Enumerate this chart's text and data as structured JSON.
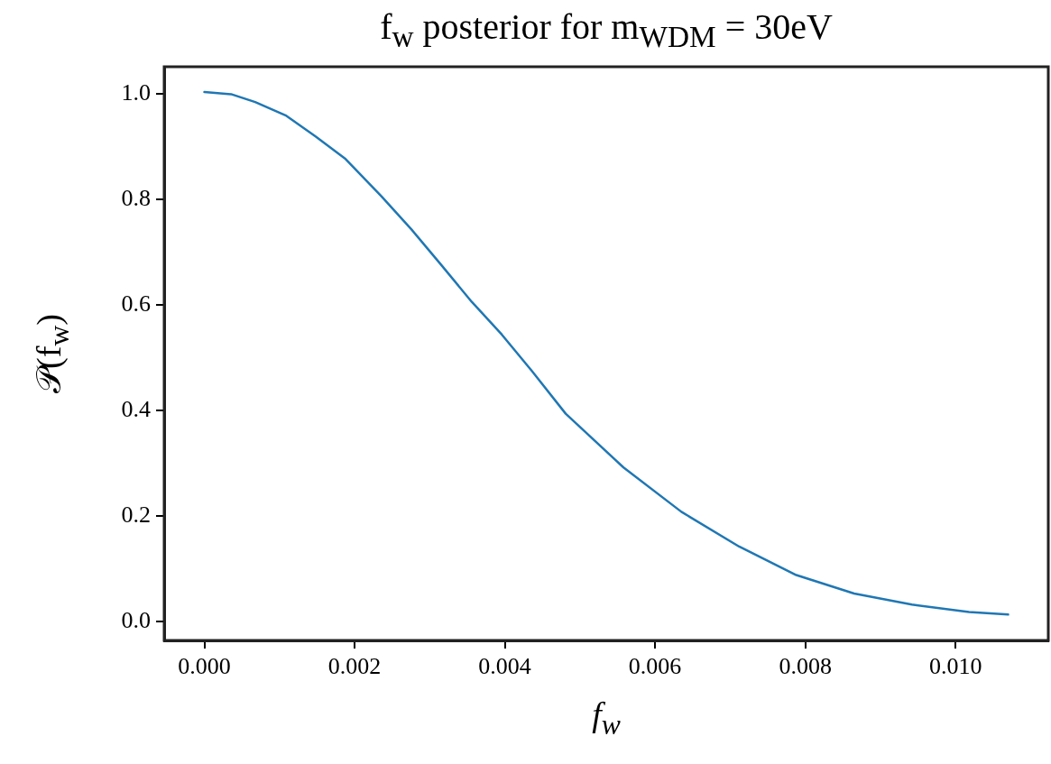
{
  "chart_data": {
    "type": "line",
    "title": "f$_{w}$   posterior   for   m$_{WDM}$ = 30eV",
    "xlabel": "f$_{w}$",
    "ylabel": "𝒫(f$_{w}$)",
    "x": [
      0,
      0.000356,
      0.000676,
      0.00108,
      0.00148,
      0.00188,
      0.00236,
      0.00276,
      0.00316,
      0.00356,
      0.00396,
      0.00436,
      0.00481,
      0.00558,
      0.00635,
      0.00712,
      0.00788,
      0.00865,
      0.00942,
      0.01018,
      0.0107
    ],
    "series": [
      {
        "color": "#1f77b4",
        "values": [
          1.004,
          1.0,
          0.985,
          0.96,
          0.92,
          0.877,
          0.806,
          0.743,
          0.675,
          0.606,
          0.544,
          0.475,
          0.394,
          0.292,
          0.208,
          0.142,
          0.088,
          0.053,
          0.032,
          0.018,
          0.013
        ]
      }
    ],
    "xlim": [
      -0.000535,
      0.011235
    ],
    "xticks": [
      {
        "value": 0,
        "label": "0.000"
      },
      {
        "value": 0.002,
        "label": "0.002"
      },
      {
        "value": 0.004,
        "label": "0.004"
      },
      {
        "value": 0.006,
        "label": "0.006"
      },
      {
        "value": 0.008,
        "label": "0.008"
      },
      {
        "value": 0.01,
        "label": "0.010"
      }
    ],
    "ylim": [
      -0.036,
      1.052
    ],
    "yticks": [
      {
        "value": 0,
        "label": "0.0"
      },
      {
        "value": 0.2,
        "label": "0.2"
      },
      {
        "value": 0.4,
        "label": "0.4"
      },
      {
        "value": 0.6,
        "label": "0.6"
      },
      {
        "value": 0.8,
        "label": "0.8"
      },
      {
        "value": 1,
        "label": "1.0"
      }
    ],
    "grid": false,
    "legend": false,
    "marker": "none",
    "line_style": "solid"
  }
}
